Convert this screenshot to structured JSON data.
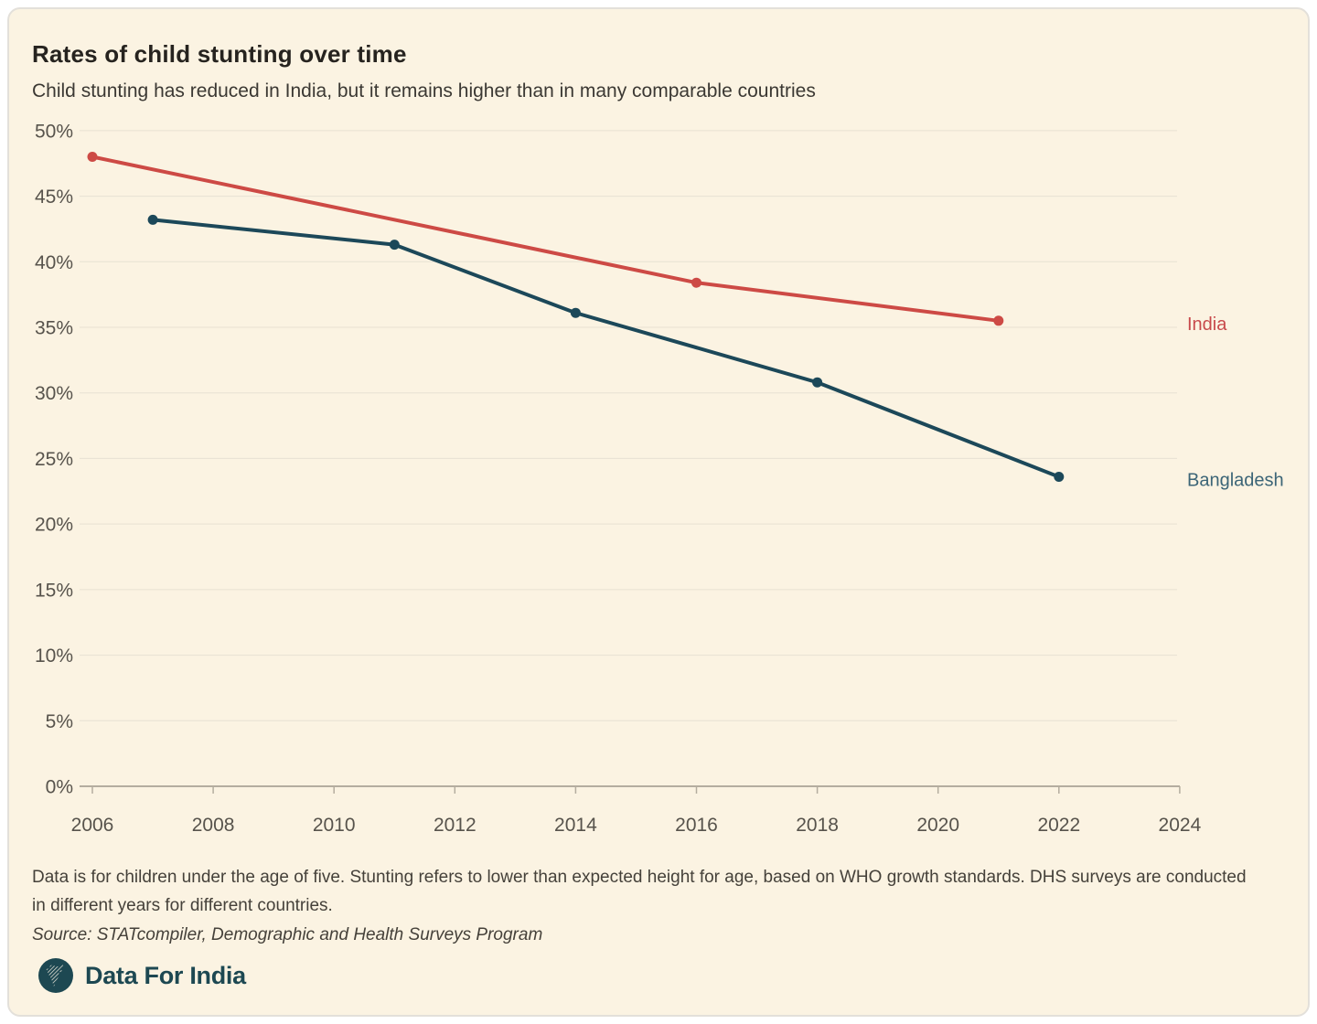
{
  "header": {
    "title": "Rates of child stunting over time",
    "subtitle": "Child stunting has reduced in India, but it remains higher than in many comparable countries"
  },
  "chart_data": {
    "type": "line",
    "title": "Rates of child stunting over time",
    "xlabel": "",
    "ylabel": "",
    "xlim": [
      2006,
      2024
    ],
    "ylim": [
      0,
      50
    ],
    "grid": true,
    "legend_position": "right-end-of-lines",
    "x_ticks": [
      2006,
      2008,
      2010,
      2012,
      2014,
      2016,
      2018,
      2020,
      2022,
      2024
    ],
    "y_ticks": [
      0,
      5,
      10,
      15,
      20,
      25,
      30,
      35,
      40,
      45,
      50
    ],
    "y_tick_suffix": "%",
    "series": [
      {
        "name": "India",
        "color": "#cd4a45",
        "label_color": "#c8494b",
        "points": [
          {
            "x": 2006,
            "y": 48.0
          },
          {
            "x": 2016,
            "y": 38.4
          },
          {
            "x": 2021,
            "y": 35.5
          }
        ]
      },
      {
        "name": "Bangladesh",
        "color": "#1c4859",
        "label_color": "#3c6577",
        "points": [
          {
            "x": 2007,
            "y": 43.2
          },
          {
            "x": 2011,
            "y": 41.3
          },
          {
            "x": 2014,
            "y": 36.1
          },
          {
            "x": 2018,
            "y": 30.8
          },
          {
            "x": 2022,
            "y": 23.6
          }
        ]
      }
    ]
  },
  "footnote": {
    "text": "Data is for children under the age of five. Stunting refers to lower than expected height for age, based on WHO growth standards. DHS surveys are conducted in different years for different countries.",
    "source": "Source: STATcompiler, Demographic and Health Surveys Program"
  },
  "branding": {
    "logo_text": "Data For India"
  },
  "colors": {
    "background": "#fbf3e2",
    "grid": "#e8e1d3",
    "axis": "#b4ad9f",
    "tick_text": "#57534c",
    "india": "#cd4a45",
    "bangladesh": "#1c4859",
    "brand": "#1d4852"
  }
}
